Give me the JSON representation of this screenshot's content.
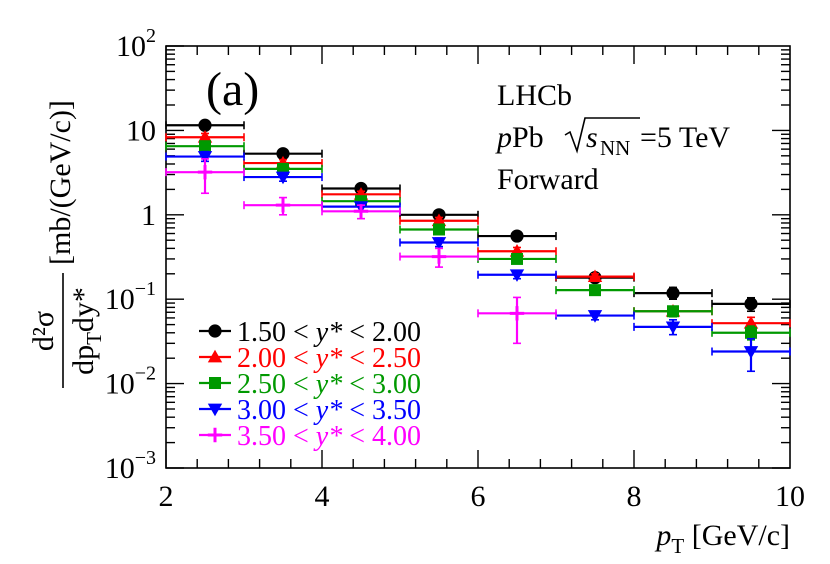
{
  "chart_data": {
    "type": "scatter",
    "title": "",
    "panel_label": "(a)",
    "annotations": {
      "experiment": "LHCb",
      "system_prefix": "p",
      "system_rest": "Pb",
      "energy_symbol": "s",
      "energy_subscript": "NN",
      "energy_value": "=5 TeV",
      "region": "Forward"
    },
    "xlabel": {
      "symbol": "p",
      "subscript": "T",
      "units": " [GeV/c]"
    },
    "ylabel": {
      "numerator": "d²σ",
      "denominator": "dp",
      "denominator_sub": "T",
      "denominator_rest": "dy*",
      "units": "[mb/(GeV/c)]"
    },
    "xlim": [
      2,
      10
    ],
    "ylim": [
      0.001,
      100
    ],
    "yscale": "log",
    "xticks": [
      2,
      4,
      6,
      8,
      10
    ],
    "yticks": [
      {
        "value": 0.001,
        "base": "10",
        "exp": "−3"
      },
      {
        "value": 0.01,
        "base": "10",
        "exp": "−2"
      },
      {
        "value": 0.1,
        "base": "10",
        "exp": "−1"
      },
      {
        "value": 1,
        "base": "1",
        "exp": ""
      },
      {
        "value": 10,
        "base": "10",
        "exp": ""
      },
      {
        "value": 100,
        "base": "10",
        "exp": "2"
      }
    ],
    "legend_position": "bottom-left",
    "series": [
      {
        "name": "1.50 < y* < 2.00",
        "color": "#000000",
        "marker": "circle",
        "points": [
          {
            "x": 2.5,
            "y": 11.5,
            "ylo": 10.3,
            "yhi": 12.8
          },
          {
            "x": 3.5,
            "y": 5.3,
            "ylo": 4.8,
            "yhi": 5.8
          },
          {
            "x": 4.5,
            "y": 2.05,
            "ylo": 1.85,
            "yhi": 2.25
          },
          {
            "x": 5.5,
            "y": 1.0,
            "ylo": 0.92,
            "yhi": 1.09
          },
          {
            "x": 6.5,
            "y": 0.56,
            "ylo": 0.51,
            "yhi": 0.61
          },
          {
            "x": 7.5,
            "y": 0.18,
            "ylo": 0.165,
            "yhi": 0.195
          },
          {
            "x": 8.5,
            "y": 0.118,
            "ylo": 0.1,
            "yhi": 0.138
          },
          {
            "x": 9.5,
            "y": 0.088,
            "ylo": 0.072,
            "yhi": 0.104
          }
        ]
      },
      {
        "name": "2.00 < y* < 2.50",
        "color": "#ff0000",
        "marker": "triangle-up",
        "points": [
          {
            "x": 2.5,
            "y": 8.3,
            "ylo": 7.4,
            "yhi": 9.2
          },
          {
            "x": 3.5,
            "y": 4.1,
            "ylo": 3.7,
            "yhi": 4.5
          },
          {
            "x": 4.5,
            "y": 1.75,
            "ylo": 1.6,
            "yhi": 1.9
          },
          {
            "x": 5.5,
            "y": 0.85,
            "ylo": 0.78,
            "yhi": 0.93
          },
          {
            "x": 6.5,
            "y": 0.37,
            "ylo": 0.34,
            "yhi": 0.41
          },
          {
            "x": 7.5,
            "y": 0.185,
            "ylo": 0.17,
            "yhi": 0.2
          },
          {
            "x": 8.5,
            "y": 0.072,
            "ylo": 0.062,
            "yhi": 0.082
          },
          {
            "x": 9.5,
            "y": 0.052,
            "ylo": 0.044,
            "yhi": 0.061
          }
        ]
      },
      {
        "name": "2.50 < y* < 3.00",
        "color": "#009900",
        "marker": "square",
        "points": [
          {
            "x": 2.5,
            "y": 6.5,
            "ylo": 5.8,
            "yhi": 7.3
          },
          {
            "x": 3.5,
            "y": 3.5,
            "ylo": 3.15,
            "yhi": 3.85
          },
          {
            "x": 4.5,
            "y": 1.45,
            "ylo": 1.3,
            "yhi": 1.6
          },
          {
            "x": 5.5,
            "y": 0.67,
            "ylo": 0.6,
            "yhi": 0.75
          },
          {
            "x": 6.5,
            "y": 0.3,
            "ylo": 0.27,
            "yhi": 0.33
          },
          {
            "x": 7.5,
            "y": 0.128,
            "ylo": 0.115,
            "yhi": 0.142
          },
          {
            "x": 8.5,
            "y": 0.072,
            "ylo": 0.062,
            "yhi": 0.082
          },
          {
            "x": 9.5,
            "y": 0.04,
            "ylo": 0.033,
            "yhi": 0.048
          }
        ]
      },
      {
        "name": "3.00 < y* < 3.50",
        "color": "#0000ff",
        "marker": "triangle-down",
        "points": [
          {
            "x": 2.5,
            "y": 4.9,
            "ylo": 4.3,
            "yhi": 5.6
          },
          {
            "x": 3.5,
            "y": 2.8,
            "ylo": 2.5,
            "yhi": 3.1
          },
          {
            "x": 4.5,
            "y": 1.25,
            "ylo": 1.1,
            "yhi": 1.4
          },
          {
            "x": 5.5,
            "y": 0.47,
            "ylo": 0.42,
            "yhi": 0.53
          },
          {
            "x": 6.5,
            "y": 0.195,
            "ylo": 0.175,
            "yhi": 0.217
          },
          {
            "x": 7.5,
            "y": 0.064,
            "ylo": 0.057,
            "yhi": 0.072
          },
          {
            "x": 8.5,
            "y": 0.047,
            "ylo": 0.038,
            "yhi": 0.057
          },
          {
            "x": 9.5,
            "y": 0.024,
            "ylo": 0.014,
            "yhi": 0.034
          }
        ]
      },
      {
        "name": "3.50 < y* < 4.00",
        "color": "#ff00ff",
        "marker": "cross",
        "points": [
          {
            "x": 2.5,
            "y": 3.2,
            "ylo": 1.8,
            "yhi": 4.6
          },
          {
            "x": 3.5,
            "y": 1.3,
            "ylo": 1.0,
            "yhi": 1.6
          },
          {
            "x": 4.5,
            "y": 1.1,
            "ylo": 0.9,
            "yhi": 1.3
          },
          {
            "x": 5.5,
            "y": 0.32,
            "ylo": 0.24,
            "yhi": 0.4
          },
          {
            "x": 6.5,
            "y": 0.068,
            "ylo": 0.03,
            "yhi": 0.105
          }
        ]
      }
    ]
  }
}
